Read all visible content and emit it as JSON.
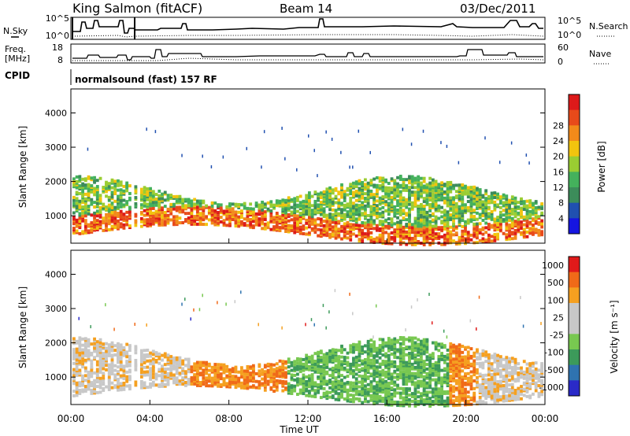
{
  "header": {
    "station": "King Salmon (fitACF)",
    "beam": "Beam 14",
    "date": "03/Dec/2011"
  },
  "top_panels": {
    "noise": {
      "left_label": "N.Sky",
      "right_label": "N.Search",
      "left_ticks": [
        "10^5",
        "10^0"
      ],
      "right_ticks": [
        "10^5",
        "10^0"
      ]
    },
    "freq": {
      "left_label_1": "Freq.",
      "left_label_2": "[MHz]",
      "left_ticks": [
        "18",
        "8"
      ],
      "right_label": "Nave",
      "right_ticks": [
        "60",
        "0"
      ]
    },
    "cpid": {
      "label": "CPID",
      "text": "normalsound (fast) 157 RF"
    }
  },
  "colors": {
    "power_scale": [
      "#1515e0",
      "#2050b0",
      "#3c8c5a",
      "#44b15c",
      "#9acd32",
      "#f2c40e",
      "#f28a1a",
      "#e84a1a",
      "#dd1a1a"
    ],
    "velocity_scale": [
      "#2a2ac8",
      "#2f73b0",
      "#3c9a5a",
      "#78c850",
      "#c8c8c8",
      "#c8c8c8",
      "#f5a020",
      "#f06a18",
      "#e01a1a"
    ]
  },
  "chart_data": [
    {
      "type": "heatmap",
      "name": "power",
      "ylabel": "Slant Range [km]",
      "yticks": [
        "1000",
        "2000",
        "3000",
        "4000"
      ],
      "ylim": [
        200,
        4700
      ],
      "colorbar_label": "Power [dB]",
      "colorbar_ticks": [
        "4",
        "8",
        "12",
        "16",
        "20",
        "24",
        "28"
      ]
    },
    {
      "type": "heatmap",
      "name": "velocity",
      "ylabel": "Slant Range [km]",
      "yticks": [
        "1000",
        "2000",
        "3000",
        "4000"
      ],
      "ylim": [
        200,
        4700
      ],
      "colorbar_label": "Velocity [m s⁻¹]",
      "colorbar_ticks": [
        "1000",
        "500",
        "100",
        "25",
        "-25",
        "-100",
        "-500",
        "-1000"
      ]
    }
  ],
  "xaxis": {
    "label": "Time UT",
    "ticks": [
      "00:00",
      "04:00",
      "08:00",
      "12:00",
      "16:00",
      "20:00",
      "00:00"
    ]
  }
}
